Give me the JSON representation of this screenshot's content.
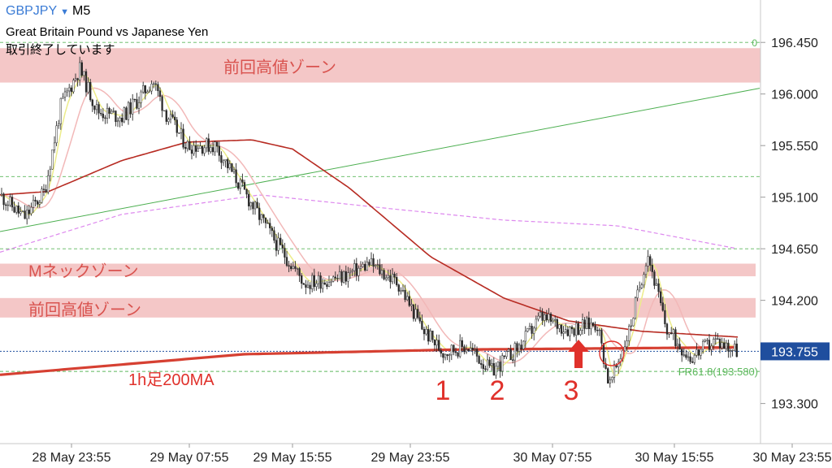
{
  "header": {
    "symbol": "GBPJPY",
    "timeframe": "M5",
    "full_name": "Great Britain Pound vs Japanese Yen",
    "status": "取引終了しています"
  },
  "colors": {
    "zone_fill": "#f4c7c7",
    "zone_text": "#d9534f",
    "annotation_red": "#e0312b",
    "ma_red_dark": "#b72b22",
    "ma_thick": "#d64032",
    "ma_yellow": "#ecec8a",
    "ma_pink": "#f2b8b8",
    "ma_violet_dashed": "#dd88ee",
    "trend_green": "#4caf50",
    "grid_green_dashed": "#5cb85c",
    "price_line_blue": "#1f4e9e",
    "price_box": "#1f4e9e",
    "candles": "#2a2a2a"
  },
  "chart_data": {
    "type": "candlestick",
    "x_ticks": [
      "28 May 23:55",
      "29 May 07:55",
      "29 May 15:55",
      "29 May 23:55",
      "30 May 07:55",
      "30 May 15:55",
      "30 May 23:55"
    ],
    "y_ticks": [
      196.45,
      196.0,
      195.55,
      195.1,
      194.65,
      194.2,
      193.755,
      193.3
    ],
    "ylim": [
      192.95,
      196.82
    ],
    "current_price": "193.755",
    "fib_label": "FR61.8(193.580)",
    "fib_marker": "0",
    "dashed_levels": [
      196.45,
      195.28,
      194.65,
      193.58
    ],
    "zones": [
      {
        "label": "前回高値ゾーン",
        "low": 196.1,
        "high": 196.4
      },
      {
        "label": "Mネックゾーン",
        "low": 194.41,
        "high": 194.52
      },
      {
        "label": "前回高値ゾーン",
        "low": 194.05,
        "high": 194.22
      }
    ],
    "annotations": {
      "ma_label": "1h足200MA",
      "numbers": [
        "1",
        "2",
        "3"
      ]
    },
    "price_path": [
      {
        "t": 0,
        "p": 195.12
      },
      {
        "t": 30,
        "p": 194.92
      },
      {
        "t": 55,
        "p": 195.15
      },
      {
        "t": 75,
        "p": 195.9
      },
      {
        "t": 98,
        "p": 196.22
      },
      {
        "t": 120,
        "p": 195.85
      },
      {
        "t": 150,
        "p": 195.8
      },
      {
        "t": 170,
        "p": 195.95
      },
      {
        "t": 188,
        "p": 196.12
      },
      {
        "t": 205,
        "p": 195.82
      },
      {
        "t": 230,
        "p": 195.55
      },
      {
        "t": 265,
        "p": 195.55
      },
      {
        "t": 300,
        "p": 195.15
      },
      {
        "t": 340,
        "p": 194.7
      },
      {
        "t": 375,
        "p": 194.35
      },
      {
        "t": 420,
        "p": 194.4
      },
      {
        "t": 455,
        "p": 194.52
      },
      {
        "t": 490,
        "p": 194.35
      },
      {
        "t": 520,
        "p": 193.95
      },
      {
        "t": 545,
        "p": 193.75
      },
      {
        "t": 575,
        "p": 193.8
      },
      {
        "t": 605,
        "p": 193.58
      },
      {
        "t": 640,
        "p": 193.8
      },
      {
        "t": 665,
        "p": 194.05
      },
      {
        "t": 700,
        "p": 193.95
      },
      {
        "t": 735,
        "p": 194.0
      },
      {
        "t": 750,
        "p": 193.45
      },
      {
        "t": 775,
        "p": 193.95
      },
      {
        "t": 797,
        "p": 194.62
      },
      {
        "t": 820,
        "p": 193.95
      },
      {
        "t": 850,
        "p": 193.7
      },
      {
        "t": 880,
        "p": 193.85
      },
      {
        "t": 908,
        "p": 193.76
      }
    ],
    "ma_1h200": [
      {
        "t": 0,
        "p": 193.55
      },
      {
        "t": 300,
        "p": 193.73
      },
      {
        "t": 560,
        "p": 193.77
      },
      {
        "t": 908,
        "p": 193.79
      }
    ],
    "ma_red": [
      {
        "t": 0,
        "p": 195.12
      },
      {
        "t": 60,
        "p": 195.15
      },
      {
        "t": 150,
        "p": 195.42
      },
      {
        "t": 230,
        "p": 195.58
      },
      {
        "t": 310,
        "p": 195.6
      },
      {
        "t": 360,
        "p": 195.52
      },
      {
        "t": 430,
        "p": 195.18
      },
      {
        "t": 530,
        "p": 194.58
      },
      {
        "t": 620,
        "p": 194.22
      },
      {
        "t": 700,
        "p": 194.02
      },
      {
        "t": 790,
        "p": 193.93
      },
      {
        "t": 908,
        "p": 193.88
      }
    ],
    "ma_violet": [
      {
        "t": 0,
        "p": 194.62
      },
      {
        "t": 150,
        "p": 194.95
      },
      {
        "t": 320,
        "p": 195.12
      },
      {
        "t": 480,
        "p": 195.0
      },
      {
        "t": 620,
        "p": 194.9
      },
      {
        "t": 760,
        "p": 194.85
      },
      {
        "t": 908,
        "p": 194.65
      }
    ],
    "trend_line": [
      {
        "t": 0,
        "p": 194.8
      },
      {
        "t": 935,
        "p": 196.05
      }
    ]
  }
}
